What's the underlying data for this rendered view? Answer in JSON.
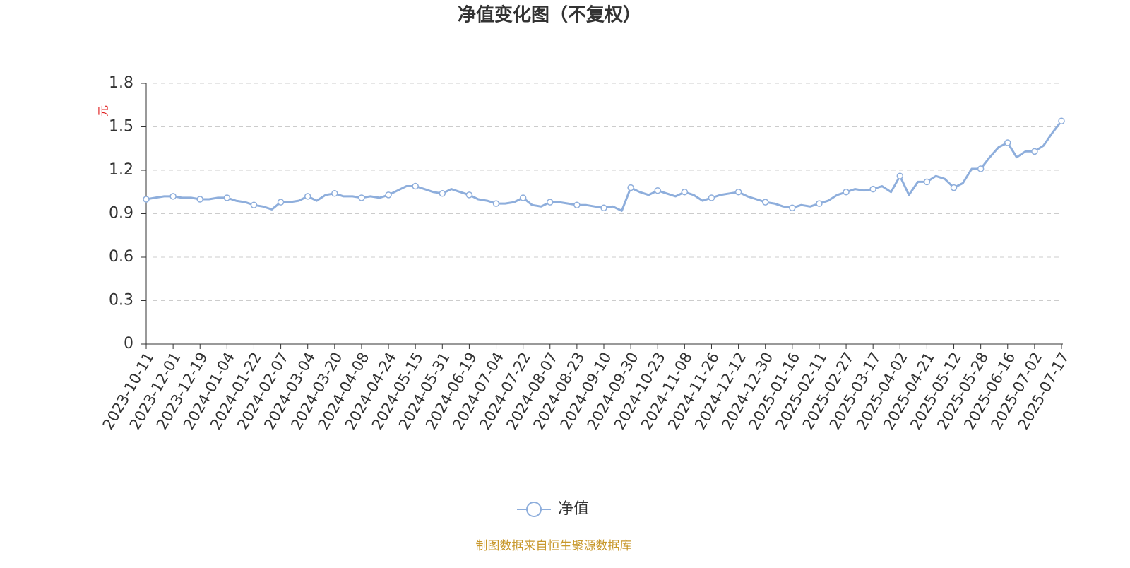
{
  "chart_data": {
    "type": "line",
    "title": "净值变化图（不复权）",
    "y_axis_label": "元",
    "categories": [
      "2023-10-11",
      null,
      null,
      "2023-12-01",
      null,
      null,
      "2023-12-19",
      null,
      null,
      "2024-01-04",
      null,
      null,
      "2024-01-22",
      null,
      null,
      "2024-02-07",
      null,
      null,
      "2024-03-04",
      null,
      null,
      "2024-03-20",
      null,
      null,
      "2024-04-08",
      null,
      null,
      "2024-04-24",
      null,
      null,
      "2024-05-15",
      null,
      null,
      "2024-05-31",
      null,
      null,
      "2024-06-19",
      null,
      null,
      "2024-07-04",
      null,
      null,
      "2024-07-22",
      null,
      null,
      "2024-08-07",
      null,
      null,
      "2024-08-23",
      null,
      null,
      "2024-09-10",
      null,
      null,
      "2024-09-30",
      null,
      null,
      "2024-10-23",
      null,
      null,
      "2024-11-08",
      null,
      null,
      "2024-11-26",
      null,
      null,
      "2024-12-12",
      null,
      null,
      "2024-12-30",
      null,
      null,
      "2025-01-16",
      null,
      null,
      "2025-02-11",
      null,
      null,
      "2025-02-27",
      null,
      null,
      "2025-03-17",
      null,
      null,
      "2025-04-02",
      null,
      null,
      "2025-04-21",
      null,
      null,
      "2025-05-12",
      null,
      null,
      "2025-05-28",
      null,
      null,
      "2025-06-16",
      null,
      null,
      "2025-07-02",
      null,
      null,
      "2025-07-17"
    ],
    "series": [
      {
        "name": "净值",
        "color": "#8eaedc",
        "values": [
          1.0,
          1.01,
          1.02,
          1.02,
          1.01,
          1.01,
          1.0,
          1.0,
          1.01,
          1.01,
          0.99,
          0.98,
          0.96,
          0.95,
          0.93,
          0.98,
          0.98,
          0.99,
          1.02,
          0.99,
          1.03,
          1.04,
          1.02,
          1.02,
          1.01,
          1.02,
          1.01,
          1.03,
          1.06,
          1.09,
          1.09,
          1.07,
          1.05,
          1.04,
          1.07,
          1.05,
          1.03,
          1.0,
          0.99,
          0.97,
          0.97,
          0.98,
          1.01,
          0.96,
          0.95,
          0.98,
          0.98,
          0.97,
          0.96,
          0.96,
          0.95,
          0.94,
          0.95,
          0.92,
          1.08,
          1.05,
          1.03,
          1.06,
          1.04,
          1.02,
          1.05,
          1.03,
          0.99,
          1.01,
          1.03,
          1.04,
          1.05,
          1.02,
          1.0,
          0.98,
          0.97,
          0.95,
          0.94,
          0.96,
          0.95,
          0.97,
          0.99,
          1.03,
          1.05,
          1.07,
          1.06,
          1.07,
          1.09,
          1.05,
          1.16,
          1.03,
          1.12,
          1.12,
          1.16,
          1.14,
          1.08,
          1.11,
          1.21,
          1.21,
          1.29,
          1.36,
          1.39,
          1.29,
          1.33,
          1.33,
          1.37,
          1.46,
          1.54
        ]
      }
    ],
    "ylim": [
      0,
      1.8
    ],
    "yticks": [
      0,
      0.3,
      0.6,
      0.9,
      1.2,
      1.5,
      1.8
    ],
    "grid": true,
    "legend": "bottom",
    "source": "制图数据来自恒生聚源数据库"
  }
}
